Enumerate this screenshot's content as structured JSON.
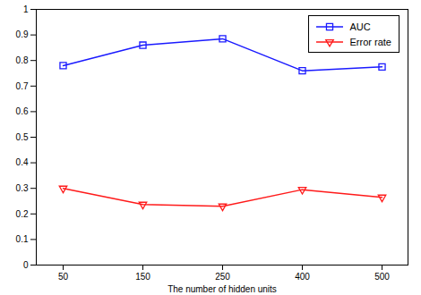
{
  "chart_data": {
    "type": "line",
    "x_label": "The number of hidden units",
    "categories": [
      50,
      150,
      250,
      400,
      500
    ],
    "series": [
      {
        "name": "AUC",
        "color": "#1a1aff",
        "marker": "square",
        "values": [
          0.78,
          0.86,
          0.885,
          0.76,
          0.775
        ]
      },
      {
        "name": "Error rate",
        "color": "#ff1a1a",
        "marker": "triangle-down",
        "values": [
          0.3,
          0.237,
          0.23,
          0.295,
          0.265
        ]
      }
    ],
    "ylim": [
      0,
      1
    ],
    "yticks": [
      0,
      0.1,
      0.2,
      0.3,
      0.4,
      0.5,
      0.6,
      0.7,
      0.8,
      0.9,
      1
    ],
    "grid": false,
    "legend": "upper right"
  }
}
